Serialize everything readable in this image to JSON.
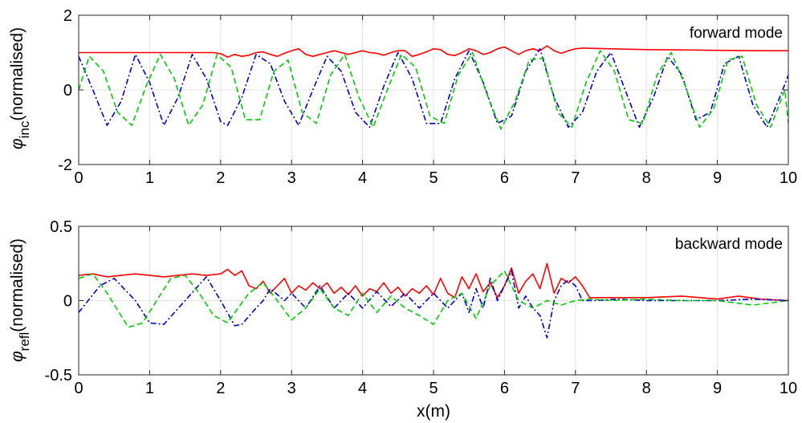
{
  "chart_data": [
    {
      "type": "line",
      "title": "",
      "ylabel_symbol": "φ",
      "ylabel_sub": "inc",
      "ylabel_rest": "(normalised)",
      "xlabel": "",
      "annotation": "forward mode",
      "xlim": [
        0,
        10
      ],
      "ylim": [
        -2,
        2
      ],
      "xticks": [
        0,
        1,
        2,
        3,
        4,
        5,
        6,
        7,
        8,
        9,
        10
      ],
      "yticks": [
        -2,
        0,
        2
      ],
      "grid": true,
      "series": [
        {
          "color": "#ff0000",
          "style": "solid",
          "x": [
            0,
            0.5,
            1,
            1.5,
            1.9,
            2.0,
            2.1,
            2.2,
            2.3,
            2.4,
            2.5,
            2.6,
            2.7,
            2.8,
            2.9,
            3.0,
            3.1,
            3.2,
            3.3,
            3.4,
            3.5,
            3.6,
            3.7,
            3.8,
            3.9,
            4.0,
            4.1,
            4.2,
            4.3,
            4.4,
            4.5,
            4.6,
            4.7,
            4.8,
            4.9,
            5.0,
            5.1,
            5.2,
            5.3,
            5.4,
            5.5,
            5.6,
            5.7,
            5.8,
            5.9,
            6.0,
            6.1,
            6.2,
            6.3,
            6.4,
            6.5,
            6.6,
            6.7,
            6.8,
            6.9,
            7.0,
            7.1,
            7.5,
            8,
            8.5,
            9,
            9.5,
            10
          ],
          "y": [
            1.0,
            1.0,
            1.0,
            1.0,
            1.0,
            0.97,
            0.88,
            0.95,
            0.9,
            0.93,
            1.0,
            1.02,
            0.95,
            0.9,
            0.98,
            1.05,
            1.1,
            0.95,
            0.9,
            0.95,
            1.0,
            1.05,
            1.0,
            0.95,
            1.0,
            1.05,
            1.0,
            0.98,
            0.93,
            1.0,
            1.05,
            1.05,
            0.9,
            0.95,
            1.02,
            1.1,
            1.08,
            0.95,
            0.92,
            1.0,
            1.1,
            1.05,
            0.95,
            1.0,
            1.1,
            1.15,
            1.05,
            0.95,
            1.05,
            1.1,
            1.05,
            1.18,
            1.05,
            0.98,
            1.05,
            1.1,
            1.12,
            1.1,
            1.08,
            1.07,
            1.06,
            1.05,
            1.05
          ]
        },
        {
          "color": "#0000cc",
          "style": "dashdot",
          "x": [
            0,
            0.2,
            0.4,
            0.6,
            0.8,
            1.0,
            1.2,
            1.4,
            1.6,
            1.8,
            2.0,
            2.1,
            2.3,
            2.5,
            2.7,
            2.9,
            3.1,
            3.3,
            3.5,
            3.7,
            3.9,
            4.1,
            4.3,
            4.5,
            4.7,
            4.9,
            5.1,
            5.3,
            5.5,
            5.7,
            5.9,
            6.1,
            6.3,
            6.5,
            6.7,
            6.9,
            7.1,
            7.3,
            7.5,
            7.7,
            7.9,
            8.1,
            8.3,
            8.5,
            8.7,
            8.9,
            9.1,
            9.3,
            9.5,
            9.7,
            9.9,
            10.0
          ],
          "y": [
            0.9,
            0.0,
            -0.95,
            -0.3,
            0.95,
            0.2,
            -0.95,
            -0.2,
            0.95,
            0.3,
            -0.85,
            -0.95,
            -0.2,
            0.95,
            0.7,
            -0.3,
            -0.95,
            0.0,
            0.9,
            0.5,
            -0.6,
            -1.0,
            0.1,
            1.0,
            0.3,
            -0.9,
            -0.9,
            0.3,
            1.05,
            0.2,
            -0.9,
            -0.7,
            0.5,
            1.1,
            -0.2,
            -1.0,
            -0.6,
            0.5,
            1.0,
            0.0,
            -1.0,
            -0.2,
            0.9,
            0.4,
            -0.8,
            -0.6,
            0.7,
            0.9,
            -0.4,
            -1.0,
            -0.1,
            0.4
          ]
        },
        {
          "color": "#00cc00",
          "style": "dashed",
          "x": [
            0,
            0.15,
            0.35,
            0.55,
            0.75,
            0.95,
            1.15,
            1.35,
            1.55,
            1.75,
            1.95,
            2.15,
            2.35,
            2.55,
            2.75,
            2.95,
            3.15,
            3.35,
            3.55,
            3.75,
            3.95,
            4.15,
            4.35,
            4.55,
            4.75,
            4.95,
            5.15,
            5.35,
            5.55,
            5.75,
            5.95,
            6.15,
            6.35,
            6.55,
            6.75,
            6.95,
            7.15,
            7.35,
            7.55,
            7.75,
            7.95,
            8.15,
            8.35,
            8.55,
            8.75,
            8.95,
            9.15,
            9.35,
            9.55,
            9.75,
            9.95,
            10.0
          ],
          "y": [
            0.0,
            0.9,
            0.5,
            -0.6,
            -0.95,
            0.1,
            0.95,
            0.3,
            -0.95,
            -0.4,
            0.95,
            0.6,
            -0.8,
            -0.8,
            0.5,
            0.8,
            -0.6,
            -0.9,
            0.4,
            0.95,
            -0.2,
            -1.0,
            0.0,
            0.95,
            0.6,
            -0.7,
            -0.9,
            0.4,
            1.0,
            -0.1,
            -1.05,
            -0.3,
            0.8,
            0.85,
            -0.6,
            -1.0,
            0.2,
            1.05,
            0.5,
            -0.8,
            -0.9,
            0.4,
            1.0,
            0.1,
            -1.0,
            -0.5,
            0.8,
            0.9,
            -0.4,
            -1.0,
            0.0,
            -0.9
          ]
        }
      ]
    },
    {
      "type": "line",
      "title": "",
      "ylabel_symbol": "φ",
      "ylabel_sub": "refl",
      "ylabel_rest": "(normalised)",
      "xlabel": "x(m)",
      "annotation": "backward mode",
      "xlim": [
        0,
        10
      ],
      "ylim": [
        -0.5,
        0.5
      ],
      "xticks": [
        0,
        1,
        2,
        3,
        4,
        5,
        6,
        7,
        8,
        9,
        10
      ],
      "yticks": [
        -0.5,
        0,
        0.5
      ],
      "grid": true,
      "series": [
        {
          "color": "#ff0000",
          "style": "solid",
          "x": [
            0,
            0.2,
            0.4,
            0.6,
            0.8,
            1.0,
            1.2,
            1.4,
            1.6,
            1.8,
            2.0,
            2.1,
            2.2,
            2.3,
            2.4,
            2.5,
            2.6,
            2.7,
            2.8,
            2.9,
            3.0,
            3.1,
            3.2,
            3.3,
            3.4,
            3.5,
            3.6,
            3.7,
            3.8,
            3.9,
            4.0,
            4.1,
            4.2,
            4.3,
            4.4,
            4.5,
            4.6,
            4.7,
            4.8,
            4.9,
            5.0,
            5.1,
            5.2,
            5.3,
            5.4,
            5.5,
            5.6,
            5.7,
            5.8,
            5.9,
            6.0,
            6.1,
            6.2,
            6.3,
            6.4,
            6.5,
            6.6,
            6.7,
            6.8,
            6.9,
            7.0,
            7.1,
            7.2,
            7.5,
            8.0,
            8.5,
            9.0,
            9.3,
            9.6,
            10.0
          ],
          "y": [
            0.17,
            0.18,
            0.16,
            0.17,
            0.18,
            0.17,
            0.16,
            0.17,
            0.18,
            0.17,
            0.18,
            0.21,
            0.17,
            0.2,
            0.1,
            0.08,
            0.13,
            0.05,
            0.1,
            0.15,
            0.05,
            0.1,
            0.07,
            0.12,
            0.08,
            0.12,
            0.05,
            0.09,
            0.04,
            0.1,
            0.03,
            0.08,
            0.06,
            0.12,
            0.05,
            0.09,
            0.03,
            0.08,
            0.05,
            0.1,
            0.04,
            0.15,
            0.05,
            0.02,
            0.16,
            0.08,
            0.18,
            0.06,
            0.12,
            0.02,
            0.1,
            0.22,
            0.05,
            0.13,
            0.18,
            0.08,
            0.25,
            0.05,
            0.15,
            0.12,
            0.16,
            0.1,
            0.02,
            0.02,
            0.02,
            0.03,
            0.01,
            0.03,
            0.01,
            0.0
          ]
        },
        {
          "color": "#0000cc",
          "style": "dashdot",
          "x": [
            0,
            0.3,
            0.5,
            0.8,
            1.0,
            1.2,
            1.5,
            1.8,
            2.0,
            2.2,
            2.3,
            2.5,
            2.6,
            2.7,
            2.9,
            3.0,
            3.2,
            3.4,
            3.6,
            3.8,
            4.0,
            4.2,
            4.4,
            4.6,
            4.8,
            5.0,
            5.2,
            5.4,
            5.5,
            5.6,
            5.7,
            5.8,
            5.9,
            6.0,
            6.1,
            6.2,
            6.3,
            6.4,
            6.5,
            6.6,
            6.7,
            6.8,
            6.9,
            7.0,
            7.1,
            7.3,
            7.6,
            8.0,
            8.5,
            9.0,
            9.5,
            10.0
          ],
          "y": [
            -0.08,
            0.1,
            0.15,
            0.0,
            -0.15,
            -0.16,
            0.0,
            0.16,
            0.0,
            -0.17,
            -0.16,
            -0.05,
            0.0,
            0.08,
            0.0,
            0.05,
            -0.05,
            0.1,
            -0.05,
            0.05,
            -0.05,
            0.06,
            -0.04,
            0.05,
            -0.05,
            0.05,
            -0.05,
            0.05,
            -0.08,
            0.08,
            -0.05,
            0.15,
            0.0,
            0.1,
            0.2,
            -0.05,
            0.03,
            -0.05,
            -0.1,
            -0.25,
            0.0,
            0.1,
            0.14,
            0.1,
            0.0,
            0.0,
            0.01,
            0.0,
            0.0,
            0.0,
            0.01,
            0.0
          ]
        },
        {
          "color": "#00cc00",
          "style": "dashed",
          "x": [
            0,
            0.2,
            0.4,
            0.7,
            0.9,
            1.1,
            1.3,
            1.5,
            1.7,
            1.9,
            2.1,
            2.2,
            2.4,
            2.6,
            2.8,
            3.0,
            3.2,
            3.4,
            3.6,
            3.8,
            4.0,
            4.2,
            4.4,
            4.6,
            4.8,
            5.0,
            5.2,
            5.4,
            5.6,
            5.8,
            6.0,
            6.2,
            6.4,
            6.6,
            6.8,
            7.0,
            7.2,
            7.5,
            8.0,
            8.5,
            9.0,
            9.5,
            10.0
          ],
          "y": [
            0.15,
            0.18,
            0.05,
            -0.18,
            -0.15,
            0.0,
            0.15,
            0.17,
            0.05,
            -0.1,
            -0.15,
            -0.08,
            0.05,
            0.12,
            0.0,
            -0.13,
            -0.05,
            0.08,
            -0.05,
            -0.1,
            0.05,
            -0.08,
            0.03,
            -0.05,
            -0.1,
            -0.16,
            0.0,
            0.05,
            -0.12,
            0.1,
            0.2,
            0.0,
            -0.05,
            0.0,
            -0.03,
            0.0,
            0.01,
            0.0,
            0.01,
            0.0,
            0.0,
            -0.03,
            0.0
          ]
        }
      ]
    }
  ]
}
